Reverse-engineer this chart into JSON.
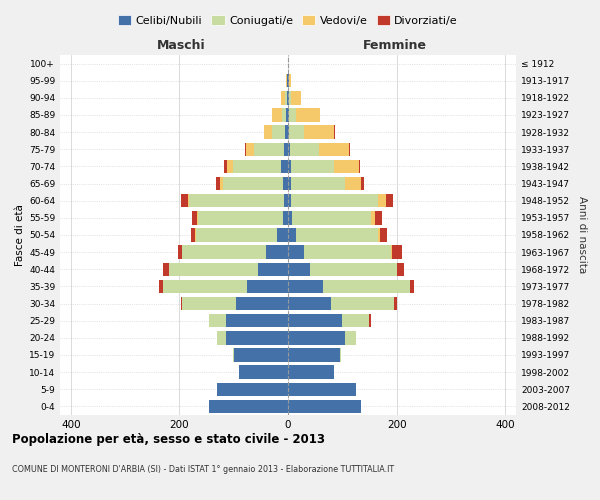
{
  "age_groups": [
    "0-4",
    "5-9",
    "10-14",
    "15-19",
    "20-24",
    "25-29",
    "30-34",
    "35-39",
    "40-44",
    "45-49",
    "50-54",
    "55-59",
    "60-64",
    "65-69",
    "70-74",
    "75-79",
    "80-84",
    "85-89",
    "90-94",
    "95-99",
    "100+"
  ],
  "birth_years": [
    "2008-2012",
    "2003-2007",
    "1998-2002",
    "1993-1997",
    "1988-1992",
    "1983-1987",
    "1978-1982",
    "1973-1977",
    "1968-1972",
    "1963-1967",
    "1958-1962",
    "1953-1957",
    "1948-1952",
    "1943-1947",
    "1938-1942",
    "1933-1937",
    "1928-1932",
    "1923-1927",
    "1918-1922",
    "1913-1917",
    "≤ 1912"
  ],
  "male": {
    "celibi": [
      145,
      130,
      90,
      100,
      115,
      115,
      95,
      75,
      55,
      40,
      20,
      10,
      8,
      10,
      12,
      8,
      5,
      3,
      2,
      1,
      0
    ],
    "coniugati": [
      0,
      0,
      0,
      2,
      15,
      30,
      100,
      155,
      165,
      155,
      150,
      155,
      175,
      110,
      90,
      55,
      25,
      8,
      3,
      1,
      0
    ],
    "vedovi": [
      0,
      0,
      0,
      0,
      0,
      0,
      0,
      0,
      0,
      0,
      1,
      2,
      2,
      5,
      10,
      15,
      15,
      18,
      8,
      2,
      0
    ],
    "divorziati": [
      0,
      0,
      0,
      0,
      0,
      0,
      3,
      8,
      10,
      8,
      8,
      10,
      12,
      8,
      5,
      1,
      0,
      0,
      0,
      0,
      0
    ]
  },
  "female": {
    "nubili": [
      135,
      125,
      85,
      95,
      105,
      100,
      80,
      65,
      40,
      30,
      15,
      8,
      6,
      5,
      5,
      3,
      2,
      2,
      1,
      1,
      0
    ],
    "coniugate": [
      0,
      0,
      0,
      3,
      20,
      50,
      115,
      160,
      160,
      160,
      150,
      145,
      160,
      100,
      80,
      55,
      28,
      12,
      5,
      1,
      0
    ],
    "vedove": [
      0,
      0,
      0,
      0,
      0,
      0,
      0,
      0,
      1,
      2,
      5,
      8,
      15,
      30,
      45,
      55,
      55,
      45,
      18,
      3,
      0
    ],
    "divorziate": [
      0,
      0,
      0,
      0,
      0,
      2,
      5,
      8,
      12,
      18,
      12,
      12,
      12,
      5,
      3,
      2,
      1,
      0,
      0,
      0,
      0
    ]
  },
  "colors": {
    "celibi": "#4472a8",
    "coniugati": "#c8dba0",
    "vedovi": "#f5c96a",
    "divorziati": "#c0392b"
  },
  "xlim": 420,
  "title": "Popolazione per età, sesso e stato civile - 2013",
  "subtitle": "COMUNE DI MONTERONI D'ARBIA (SI) - Dati ISTAT 1° gennaio 2013 - Elaborazione TUTTITALIA.IT",
  "xlabel_left": "Maschi",
  "xlabel_right": "Femmine",
  "ylabel_left": "Fasce di età",
  "ylabel_right": "Anni di nascita",
  "legend_labels": [
    "Celibi/Nubili",
    "Coniugati/e",
    "Vedovi/e",
    "Divorziati/e"
  ],
  "bg_color": "#f0f0f0",
  "plot_bg": "#ffffff"
}
